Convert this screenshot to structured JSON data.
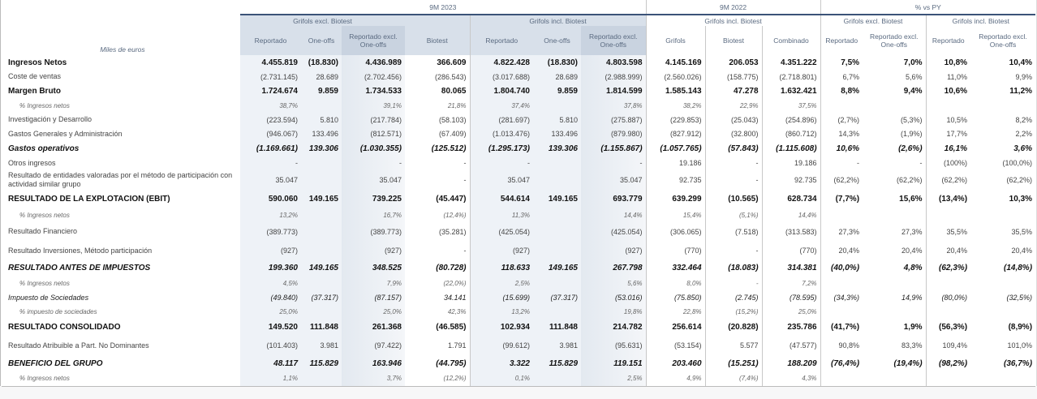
{
  "header": {
    "units_label": "Miles de euros",
    "periods": [
      "9M 2023",
      "9M 2022",
      "% vs PY"
    ],
    "groups": [
      "Grifols excl. Biotest",
      "Grifols incl. Biotest",
      "Grifols incl. Biotest",
      "Grifols excl. Biotest",
      "Grifols incl. Biotest"
    ],
    "columns": [
      "Reportado",
      "One-offs",
      "Reportado excl. One-offs",
      "Biotest",
      "Reportado",
      "One-offs",
      "Reportado excl. One-offs",
      "Grifols",
      "Biotest",
      "Combinado",
      "Reportado",
      "Reportado excl. One-offs",
      "Reportado",
      "Reportado excl. One-offs"
    ]
  },
  "rows": [
    {
      "label": "Ingresos Netos",
      "style": "bold",
      "values": [
        "4.455.819",
        "(18.830)",
        "4.436.989",
        "366.609",
        "4.822.428",
        "(18.830)",
        "4.803.598",
        "4.145.169",
        "206.053",
        "4.351.222",
        "7,5%",
        "7,0%",
        "10,8%",
        "10,4%"
      ]
    },
    {
      "label": "Coste de ventas",
      "style": "normal",
      "values": [
        "(2.731.145)",
        "28.689",
        "(2.702.456)",
        "(286.543)",
        "(3.017.688)",
        "28.689",
        "(2.988.999)",
        "(2.560.026)",
        "(158.775)",
        "(2.718.801)",
        "6,7%",
        "5,6%",
        "11,0%",
        "9,9%"
      ]
    },
    {
      "label": "Margen Bruto",
      "style": "bold",
      "values": [
        "1.724.674",
        "9.859",
        "1.734.533",
        "80.065",
        "1.804.740",
        "9.859",
        "1.814.599",
        "1.585.143",
        "47.278",
        "1.632.421",
        "8,8%",
        "9,4%",
        "10,6%",
        "11,2%"
      ]
    },
    {
      "label": "% Ingresos netos",
      "style": "pct",
      "values": [
        "38,7%",
        "",
        "39,1%",
        "21,8%",
        "37,4%",
        "",
        "37,8%",
        "38,2%",
        "22,9%",
        "37,5%",
        "",
        "",
        "",
        ""
      ]
    },
    {
      "label": "Investigación y Desarrollo",
      "style": "normal",
      "values": [
        "(223.594)",
        "5.810",
        "(217.784)",
        "(58.103)",
        "(281.697)",
        "5.810",
        "(275.887)",
        "(229.853)",
        "(25.043)",
        "(254.896)",
        "(2,7%)",
        "(5,3%)",
        "10,5%",
        "8,2%"
      ]
    },
    {
      "label": "Gastos Generales y Administración",
      "style": "normal",
      "values": [
        "(946.067)",
        "133.496",
        "(812.571)",
        "(67.409)",
        "(1.013.476)",
        "133.496",
        "(879.980)",
        "(827.912)",
        "(32.800)",
        "(860.712)",
        "14,3%",
        "(1,9%)",
        "17,7%",
        "2,2%"
      ]
    },
    {
      "label": "Gastos operativos",
      "style": "bolditalic",
      "values": [
        "(1.169.661)",
        "139.306",
        "(1.030.355)",
        "(125.512)",
        "(1.295.173)",
        "139.306",
        "(1.155.867)",
        "(1.057.765)",
        "(57.843)",
        "(1.115.608)",
        "10,6%",
        "(2,6%)",
        "16,1%",
        "3,6%"
      ]
    },
    {
      "label": "Otros ingresos",
      "style": "normal",
      "values": [
        "-",
        "",
        "-",
        "-",
        "-",
        "",
        "-",
        "19.186",
        "-",
        "19.186",
        "-",
        "-",
        "(100%)",
        "(100,0%)"
      ]
    },
    {
      "label": "Resultado de entidades valoradas por el método de participación con actividad similar grupo",
      "style": "normal",
      "values": [
        "35.047",
        "",
        "35.047",
        "-",
        "35.047",
        "",
        "35.047",
        "92.735",
        "-",
        "92.735",
        "(62,2%)",
        "(62,2%)",
        "(62,2%)",
        "(62,2%)"
      ]
    },
    {
      "label": "RESULTADO DE LA EXPLOTACION (EBIT)",
      "style": "bold",
      "values": [
        "590.060",
        "149.165",
        "739.225",
        "(45.447)",
        "544.614",
        "149.165",
        "693.779",
        "639.299",
        "(10.565)",
        "628.734",
        "(7,7%)",
        "15,6%",
        "(13,4%)",
        "10,3%"
      ]
    },
    {
      "label": "% Ingresos netos",
      "style": "pct",
      "values": [
        "13,2%",
        "",
        "16,7%",
        "(12,4%)",
        "11,3%",
        "",
        "14,4%",
        "15,4%",
        "(5,1%)",
        "14,4%",
        "",
        "",
        "",
        ""
      ]
    },
    {
      "label": "Resultado Financiero",
      "style": "normal",
      "values": [
        "(389.773)",
        "",
        "(389.773)",
        "(35.281)",
        "(425.054)",
        "",
        "(425.054)",
        "(306.065)",
        "(7.518)",
        "(313.583)",
        "27,3%",
        "27,3%",
        "35,5%",
        "35,5%"
      ]
    },
    {
      "label": "Resultado Inversiones, Método participación",
      "style": "normal",
      "values": [
        "(927)",
        "",
        "(927)",
        "-",
        "(927)",
        "",
        "(927)",
        "(770)",
        "-",
        "(770)",
        "20,4%",
        "20,4%",
        "20,4%",
        "20,4%"
      ]
    },
    {
      "label": "RESULTADO ANTES DE IMPUESTOS",
      "style": "bolditalic",
      "values": [
        "199.360",
        "149.165",
        "348.525",
        "(80.728)",
        "118.633",
        "149.165",
        "267.798",
        "332.464",
        "(18.083)",
        "314.381",
        "(40,0%)",
        "4,8%",
        "(62,3%)",
        "(14,8%)"
      ]
    },
    {
      "label": "% Ingresos netos",
      "style": "pct",
      "values": [
        "4,5%",
        "",
        "7,9%",
        "(22,0%)",
        "2,5%",
        "",
        "5,6%",
        "8,0%",
        "-",
        "7,2%",
        "",
        "",
        "",
        ""
      ]
    },
    {
      "label": "Impuesto de Sociedades",
      "style": "italic",
      "values": [
        "(49.840)",
        "(37.317)",
        "(87.157)",
        "34.141",
        "(15.699)",
        "(37.317)",
        "(53.016)",
        "(75.850)",
        "(2.745)",
        "(78.595)",
        "(34,3%)",
        "14,9%",
        "(80,0%)",
        "(32,5%)"
      ]
    },
    {
      "label": "% impuesto de sociedades",
      "style": "pct",
      "values": [
        "25,0%",
        "",
        "25,0%",
        "42,3%",
        "13,2%",
        "",
        "19,8%",
        "22,8%",
        "(15,2%)",
        "25,0%",
        "",
        "",
        "",
        ""
      ]
    },
    {
      "label": "RESULTADO CONSOLIDADO",
      "style": "bold",
      "values": [
        "149.520",
        "111.848",
        "261.368",
        "(46.585)",
        "102.934",
        "111.848",
        "214.782",
        "256.614",
        "(20.828)",
        "235.786",
        "(41,7%)",
        "1,9%",
        "(56,3%)",
        "(8,9%)"
      ]
    },
    {
      "label": "Resultado Atribuible a Part. No Dominantes",
      "style": "normal",
      "values": [
        "(101.403)",
        "3.981",
        "(97.422)",
        "1.791",
        "(99.612)",
        "3.981",
        "(95.631)",
        "(53.154)",
        "5.577",
        "(47.577)",
        "90,8%",
        "83,3%",
        "109,4%",
        "101,0%"
      ]
    },
    {
      "label": "BENEFICIO DEL GRUPO",
      "style": "bolditalic",
      "values": [
        "48.117",
        "115.829",
        "163.946",
        "(44.795)",
        "3.322",
        "115.829",
        "119.151",
        "203.460",
        "(15.251)",
        "188.209",
        "(76,4%)",
        "(19,4%)",
        "(98,2%)",
        "(36,7%)"
      ]
    },
    {
      "label": "% Ingresos netos",
      "style": "pct",
      "values": [
        "1,1%",
        "",
        "3,7%",
        "(12,2%)",
        "0,1%",
        "",
        "2,5%",
        "4,9%",
        "(7,4%)",
        "4,3%",
        "",
        "",
        "",
        ""
      ]
    }
  ]
}
